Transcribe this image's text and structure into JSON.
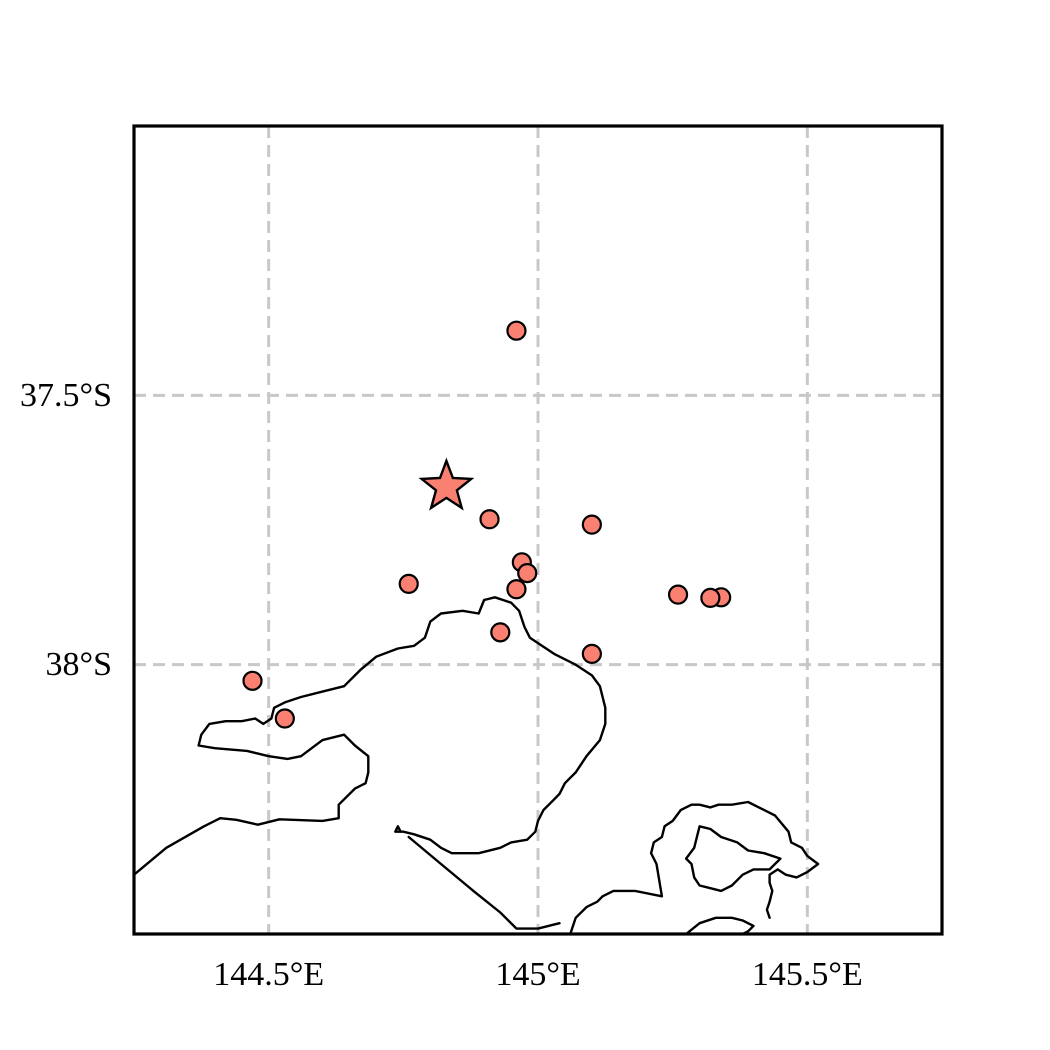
{
  "map": {
    "extent": {
      "lon": [
        144.25,
        145.75
      ],
      "lat": [
        -38.5,
        -37.0
      ]
    },
    "x_ticks": [
      {
        "value": 144.5,
        "label": "144.5°E"
      },
      {
        "value": 145.0,
        "label": "145°E"
      },
      {
        "value": 145.5,
        "label": "145.5°E"
      }
    ],
    "y_ticks": [
      {
        "value": -37.5,
        "label": "37.5°S"
      },
      {
        "value": -38.0,
        "label": "38°S"
      }
    ],
    "gridlines": true,
    "marker_color": "#fa8072",
    "coastline_color": "#000000",
    "epicenter": {
      "lon": 144.83,
      "lat": -37.67,
      "icon": "star-icon"
    },
    "earthquakes": [
      {
        "lon": 144.96,
        "lat": -37.38
      },
      {
        "lon": 144.91,
        "lat": -37.73
      },
      {
        "lon": 145.1,
        "lat": -37.74
      },
      {
        "lon": 144.97,
        "lat": -37.81
      },
      {
        "lon": 144.98,
        "lat": -37.83
      },
      {
        "lon": 144.76,
        "lat": -37.85
      },
      {
        "lon": 144.96,
        "lat": -37.86
      },
      {
        "lon": 145.26,
        "lat": -37.87
      },
      {
        "lon": 145.34,
        "lat": -37.875
      },
      {
        "lon": 145.32,
        "lat": -37.876
      },
      {
        "lon": 144.93,
        "lat": -37.94
      },
      {
        "lon": 145.1,
        "lat": -37.98
      },
      {
        "lon": 144.47,
        "lat": -38.03
      },
      {
        "lon": 144.53,
        "lat": -38.1
      }
    ],
    "coastlines": [
      [
        [
          144.25,
          -38.39
        ],
        [
          144.31,
          -38.34
        ],
        [
          144.38,
          -38.3
        ],
        [
          144.41,
          -38.285
        ],
        [
          144.44,
          -38.288
        ],
        [
          144.48,
          -38.297
        ],
        [
          144.52,
          -38.287
        ],
        [
          144.6,
          -38.29
        ],
        [
          144.63,
          -38.285
        ],
        [
          144.63,
          -38.26
        ],
        [
          144.66,
          -38.23
        ],
        [
          144.68,
          -38.22
        ],
        [
          144.685,
          -38.2
        ],
        [
          144.685,
          -38.17
        ],
        [
          144.66,
          -38.15
        ],
        [
          144.64,
          -38.13
        ],
        [
          144.6,
          -38.14
        ],
        [
          144.56,
          -38.17
        ],
        [
          144.535,
          -38.175
        ],
        [
          144.5,
          -38.17
        ],
        [
          144.46,
          -38.16
        ],
        [
          144.4,
          -38.155
        ],
        [
          144.37,
          -38.15
        ],
        [
          144.375,
          -38.13
        ],
        [
          144.39,
          -38.11
        ],
        [
          144.42,
          -38.105
        ],
        [
          144.45,
          -38.105
        ],
        [
          144.475,
          -38.1
        ],
        [
          144.49,
          -38.11
        ],
        [
          144.505,
          -38.1
        ],
        [
          144.51,
          -38.08
        ],
        [
          144.53,
          -38.07
        ],
        [
          144.56,
          -38.06
        ],
        [
          144.6,
          -38.05
        ],
        [
          144.64,
          -38.04
        ],
        [
          144.67,
          -38.01
        ],
        [
          144.7,
          -37.985
        ],
        [
          144.74,
          -37.97
        ],
        [
          144.77,
          -37.965
        ],
        [
          144.79,
          -37.95
        ],
        [
          144.8,
          -37.92
        ],
        [
          144.82,
          -37.905
        ],
        [
          144.86,
          -37.9
        ],
        [
          144.89,
          -37.905
        ],
        [
          144.9,
          -37.88
        ],
        [
          144.92,
          -37.875
        ],
        [
          144.935,
          -37.88
        ],
        [
          144.95,
          -37.885
        ],
        [
          144.965,
          -37.9
        ],
        [
          144.975,
          -37.93
        ],
        [
          144.985,
          -37.95
        ],
        [
          145.0,
          -37.96
        ],
        [
          145.03,
          -37.98
        ],
        [
          145.07,
          -38.0
        ],
        [
          145.1,
          -38.02
        ],
        [
          145.115,
          -38.04
        ],
        [
          145.125,
          -38.08
        ],
        [
          145.125,
          -38.11
        ],
        [
          145.115,
          -38.14
        ],
        [
          145.09,
          -38.17
        ],
        [
          145.07,
          -38.2
        ],
        [
          145.05,
          -38.22
        ],
        [
          145.04,
          -38.24
        ],
        [
          145.03,
          -38.25
        ],
        [
          145.01,
          -38.27
        ],
        [
          145.0,
          -38.29
        ],
        [
          144.995,
          -38.31
        ],
        [
          144.98,
          -38.325
        ],
        [
          144.95,
          -38.33
        ],
        [
          144.93,
          -38.34
        ],
        [
          144.89,
          -38.35
        ],
        [
          144.84,
          -38.35
        ],
        [
          144.82,
          -38.34
        ],
        [
          144.8,
          -38.325
        ],
        [
          144.77,
          -38.315
        ],
        [
          144.75,
          -38.31
        ],
        [
          144.735,
          -38.31
        ],
        [
          144.74,
          -38.3
        ],
        [
          144.745,
          -38.31
        ]
      ],
      [
        [
          144.76,
          -38.32
        ],
        [
          144.82,
          -38.37
        ],
        [
          144.88,
          -38.42
        ],
        [
          144.93,
          -38.46
        ],
        [
          144.96,
          -38.49
        ],
        [
          145.0,
          -38.49
        ],
        [
          145.04,
          -38.48
        ]
      ],
      [
        [
          145.06,
          -38.5
        ],
        [
          145.07,
          -38.47
        ],
        [
          145.09,
          -38.45
        ],
        [
          145.11,
          -38.44
        ],
        [
          145.12,
          -38.43
        ],
        [
          145.14,
          -38.42
        ],
        [
          145.18,
          -38.42
        ],
        [
          145.23,
          -38.43
        ],
        [
          145.225,
          -38.4
        ],
        [
          145.22,
          -38.37
        ],
        [
          145.21,
          -38.35
        ],
        [
          145.215,
          -38.33
        ],
        [
          145.23,
          -38.32
        ],
        [
          145.235,
          -38.3
        ],
        [
          145.25,
          -38.29
        ],
        [
          145.265,
          -38.27
        ],
        [
          145.285,
          -38.26
        ],
        [
          145.3,
          -38.26
        ],
        [
          145.32,
          -38.265
        ],
        [
          145.335,
          -38.26
        ],
        [
          145.36,
          -38.26
        ],
        [
          145.39,
          -38.255
        ],
        [
          145.41,
          -38.265
        ],
        [
          145.44,
          -38.28
        ],
        [
          145.465,
          -38.31
        ],
        [
          145.47,
          -38.33
        ],
        [
          145.49,
          -38.34
        ],
        [
          145.5,
          -38.355
        ],
        [
          145.52,
          -38.37
        ],
        [
          145.5,
          -38.385
        ],
        [
          145.48,
          -38.395
        ],
        [
          145.46,
          -38.39
        ],
        [
          145.445,
          -38.38
        ],
        [
          145.43,
          -38.39
        ],
        [
          145.43,
          -38.405
        ],
        [
          145.435,
          -38.42
        ],
        [
          145.43,
          -38.44
        ],
        [
          145.425,
          -38.455
        ],
        [
          145.43,
          -38.47
        ]
      ],
      [
        [
          145.275,
          -38.5
        ],
        [
          145.3,
          -38.48
        ],
        [
          145.33,
          -38.47
        ],
        [
          145.36,
          -38.47
        ],
        [
          145.38,
          -38.475
        ],
        [
          145.4,
          -38.485
        ],
        [
          145.39,
          -38.495
        ],
        [
          145.38,
          -38.5
        ]
      ],
      [
        [
          145.3,
          -38.3
        ],
        [
          145.32,
          -38.305
        ],
        [
          145.34,
          -38.32
        ],
        [
          145.37,
          -38.33
        ],
        [
          145.39,
          -38.345
        ],
        [
          145.42,
          -38.35
        ],
        [
          145.45,
          -38.36
        ],
        [
          145.43,
          -38.38
        ],
        [
          145.4,
          -38.38
        ],
        [
          145.38,
          -38.39
        ],
        [
          145.36,
          -38.41
        ],
        [
          145.34,
          -38.42
        ],
        [
          145.32,
          -38.415
        ],
        [
          145.3,
          -38.41
        ],
        [
          145.29,
          -38.395
        ],
        [
          145.285,
          -38.37
        ],
        [
          145.275,
          -38.36
        ],
        [
          145.29,
          -38.34
        ],
        [
          145.295,
          -38.32
        ],
        [
          145.3,
          -38.3
        ]
      ]
    ]
  }
}
